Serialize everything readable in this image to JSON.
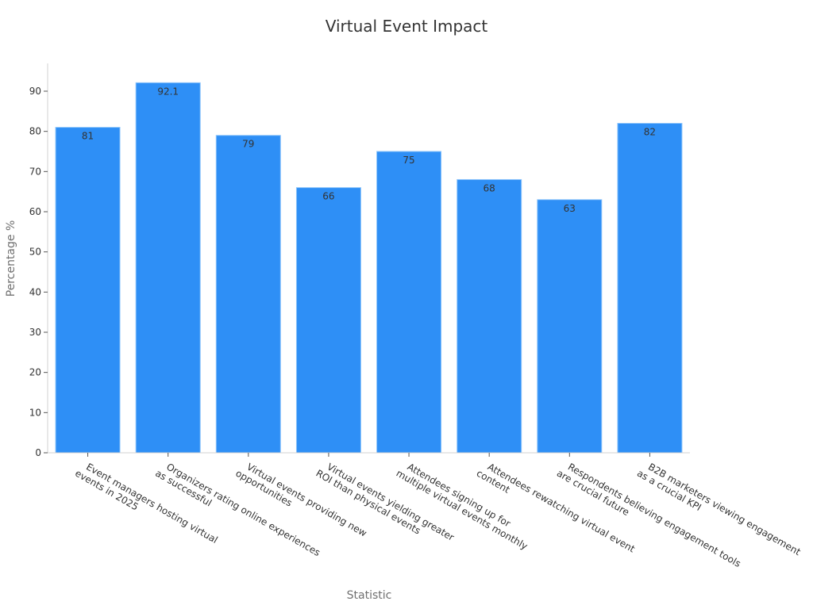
{
  "chart_data": {
    "type": "bar",
    "title": "Virtual Event Impact",
    "xlabel": "Statistic",
    "ylabel": "Percentage %",
    "ylim": [
      0,
      97
    ],
    "yticks": [
      0,
      10,
      20,
      30,
      40,
      50,
      60,
      70,
      80,
      90
    ],
    "grid": false,
    "legend": null,
    "bar_color": "#2e8ff6",
    "categories": [
      "Event managers hosting virtual events in 2025",
      "Organizers rating online experiences as successful",
      "Virtual events providing new opportunities",
      "Virtual events yielding greater ROI than physical events",
      "Attendees signing up for multiple virtual events monthly",
      "Attendees rewatching virtual event content",
      "Respondents believing engagement tools are crucial future",
      "B2B marketers viewing engagement as a crucial KPI"
    ],
    "category_lines": [
      [
        "Event managers hosting virtual",
        "events in 2025"
      ],
      [
        "Organizers rating online experiences",
        "as successful"
      ],
      [
        "Virtual events providing new",
        "opportunities"
      ],
      [
        "Virtual events yielding greater",
        "ROI than physical events"
      ],
      [
        "Attendees signing up for",
        "multiple virtual events monthly"
      ],
      [
        "Attendees rewatching virtual event",
        "content"
      ],
      [
        "Respondents believing engagement tools",
        "are crucial future"
      ],
      [
        "B2B marketers viewing engagement",
        "as a crucial KPI"
      ]
    ],
    "values": [
      81,
      92.1,
      79,
      66,
      75,
      68,
      63,
      82
    ],
    "value_labels": [
      "81",
      "92.1",
      "79",
      "66",
      "75",
      "68",
      "63",
      "82"
    ]
  }
}
